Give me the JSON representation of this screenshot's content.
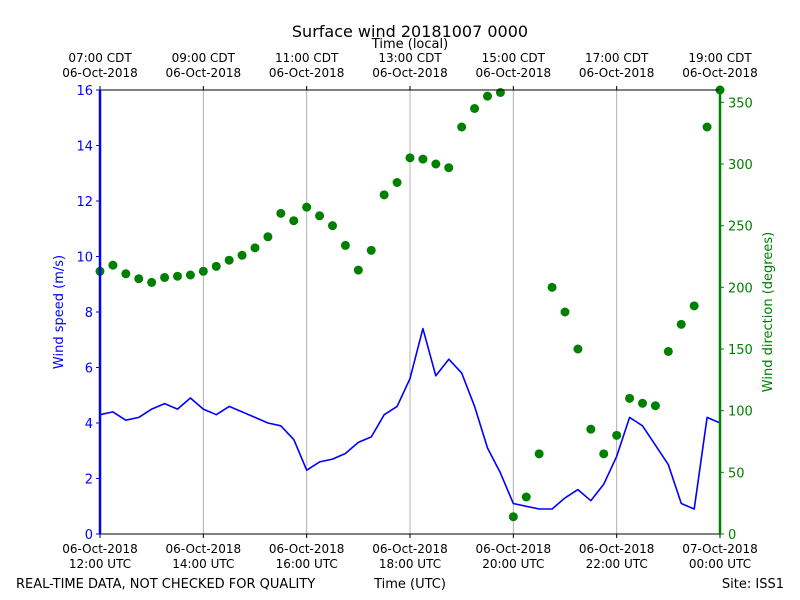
{
  "chart_data": {
    "type": "line",
    "title": "Surface wind 20181007 0000",
    "top_axis_label": "Time (local)",
    "xlabel": "Time (UTC)",
    "ylabel_left": "Wind speed (m/s)",
    "ylabel_right": "Wind direction (degrees)",
    "footer_left": "REAL-TIME DATA, NOT CHECKED FOR QUALITY",
    "footer_right": "Site: ISS1",
    "xlim_hours_utc": [
      0,
      12
    ],
    "ylim_left": [
      0,
      16
    ],
    "ylim_right": [
      0,
      360
    ],
    "grid": "vertical",
    "bottom_ticks": [
      {
        "hour": 0,
        "line1": "06-Oct-2018",
        "line2": "12:00 UTC"
      },
      {
        "hour": 2,
        "line1": "06-Oct-2018",
        "line2": "14:00 UTC"
      },
      {
        "hour": 4,
        "line1": "06-Oct-2018",
        "line2": "16:00 UTC"
      },
      {
        "hour": 6,
        "line1": "06-Oct-2018",
        "line2": "18:00 UTC"
      },
      {
        "hour": 8,
        "line1": "06-Oct-2018",
        "line2": "20:00 UTC"
      },
      {
        "hour": 10,
        "line1": "06-Oct-2018",
        "line2": "22:00 UTC"
      },
      {
        "hour": 12,
        "line1": "07-Oct-2018",
        "line2": "00:00 UTC"
      }
    ],
    "top_ticks": [
      {
        "hour": 0,
        "line1": "07:00 CDT",
        "line2": "06-Oct-2018"
      },
      {
        "hour": 2,
        "line1": "09:00 CDT",
        "line2": "06-Oct-2018"
      },
      {
        "hour": 4,
        "line1": "11:00 CDT",
        "line2": "06-Oct-2018"
      },
      {
        "hour": 6,
        "line1": "13:00 CDT",
        "line2": "06-Oct-2018"
      },
      {
        "hour": 8,
        "line1": "15:00 CDT",
        "line2": "06-Oct-2018"
      },
      {
        "hour": 10,
        "line1": "17:00 CDT",
        "line2": "06-Oct-2018"
      },
      {
        "hour": 12,
        "line1": "19:00 CDT",
        "line2": "06-Oct-2018"
      }
    ],
    "left_ticks": [
      0,
      2,
      4,
      6,
      8,
      10,
      12,
      14,
      16
    ],
    "right_ticks": [
      0,
      50,
      100,
      150,
      200,
      250,
      300,
      350
    ],
    "colors": {
      "speed": "#0000ff",
      "direction": "#008000",
      "grid": "#b0b0b0"
    },
    "series": [
      {
        "name": "Wind speed",
        "axis": "left",
        "hours": [
          0,
          0.25,
          0.5,
          0.75,
          1,
          1.25,
          1.5,
          1.75,
          2,
          2.25,
          2.5,
          2.75,
          3,
          3.25,
          3.5,
          3.75,
          4,
          4.25,
          4.5,
          4.75,
          5,
          5.25,
          5.5,
          5.75,
          6,
          6.25,
          6.5,
          6.75,
          7,
          7.25,
          7.5,
          7.75,
          8,
          8.25,
          8.5,
          8.75,
          9,
          9.25,
          9.5,
          9.75,
          10,
          10.25,
          10.5,
          10.75,
          11,
          11.25,
          11.5,
          11.75,
          12
        ],
        "values": [
          4.3,
          4.4,
          4.1,
          4.2,
          4.5,
          4.7,
          4.5,
          4.9,
          4.5,
          4.3,
          4.6,
          4.4,
          4.2,
          4.0,
          3.9,
          3.4,
          2.3,
          2.6,
          2.7,
          2.9,
          3.3,
          3.5,
          4.3,
          4.6,
          5.6,
          7.4,
          5.7,
          6.3,
          5.8,
          4.6,
          3.1,
          2.2,
          1.1,
          1.0,
          0.9,
          0.9,
          1.3,
          1.6,
          1.2,
          1.8,
          2.8,
          4.2,
          3.9,
          3.2,
          2.5,
          1.1,
          0.9,
          4.2,
          4.0
        ]
      },
      {
        "name": "Wind direction",
        "axis": "right",
        "hours": [
          0,
          0.25,
          0.5,
          0.75,
          1,
          1.25,
          1.5,
          1.75,
          2,
          2.25,
          2.5,
          2.75,
          3,
          3.25,
          3.5,
          3.75,
          4,
          4.25,
          4.5,
          4.75,
          5,
          5.25,
          5.5,
          5.75,
          6,
          6.25,
          6.5,
          6.75,
          7,
          7.25,
          7.5,
          7.75,
          8,
          8.25,
          8.5,
          8.75,
          9,
          9.25,
          9.5,
          9.75,
          10,
          10.25,
          10.5,
          10.75,
          11,
          11.25,
          11.5,
          11.75,
          12
        ],
        "values": [
          213,
          218,
          211,
          207,
          204,
          208,
          209,
          210,
          213,
          217,
          222,
          226,
          232,
          241,
          260,
          254,
          265,
          258,
          250,
          234,
          214,
          230,
          275,
          285,
          305,
          304,
          300,
          297,
          330,
          345,
          355,
          358,
          14,
          30,
          65,
          200,
          180,
          150,
          85,
          65,
          80,
          110,
          106,
          104,
          148,
          170,
          185,
          330,
          360
        ]
      }
    ]
  }
}
